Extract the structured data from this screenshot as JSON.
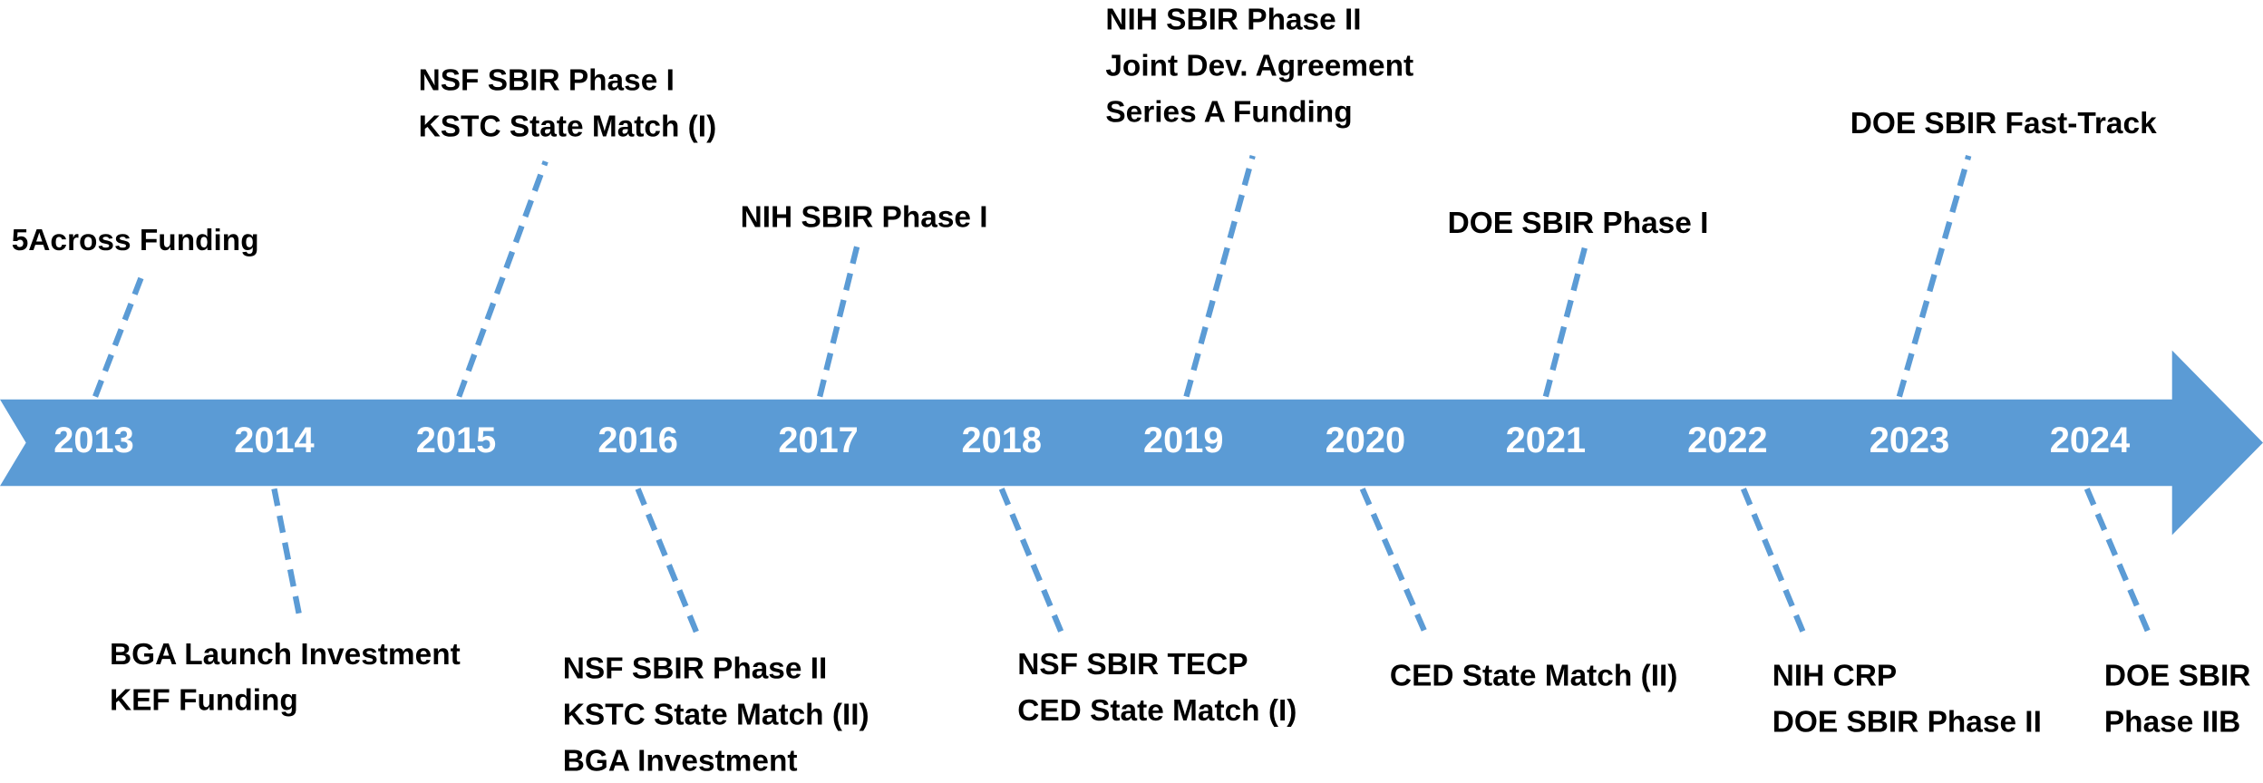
{
  "timeline": [
    {
      "year": "2013",
      "events": [
        "5Across Funding"
      ]
    },
    {
      "year": "2014",
      "events": [
        "BGA Launch Investment",
        "KEF Funding"
      ]
    },
    {
      "year": "2015",
      "events": [
        "NSF SBIR Phase I",
        "KSTC State Match (I)"
      ]
    },
    {
      "year": "2016",
      "events": [
        "NSF SBIR Phase II",
        "KSTC State Match (II)",
        "BGA Investment"
      ]
    },
    {
      "year": "2017",
      "events": [
        "NIH SBIR Phase I"
      ]
    },
    {
      "year": "2018",
      "events": [
        "NSF SBIR TECP",
        "CED State Match (I)"
      ]
    },
    {
      "year": "2019",
      "events": [
        "NIH SBIR Phase II",
        "Joint Dev. Agreement",
        "Series A Funding"
      ]
    },
    {
      "year": "2020",
      "events": [
        "CED State Match (II)"
      ]
    },
    {
      "year": "2021",
      "events": [
        "DOE SBIR Phase I"
      ]
    },
    {
      "year": "2022",
      "events": [
        "NIH CRP",
        "DOE SBIR Phase II"
      ]
    },
    {
      "year": "2023",
      "events": [
        "DOE SBIR Fast-Track"
      ]
    },
    {
      "year": "2024",
      "events": [
        "DOE SBIR",
        "Phase IIB"
      ]
    }
  ]
}
